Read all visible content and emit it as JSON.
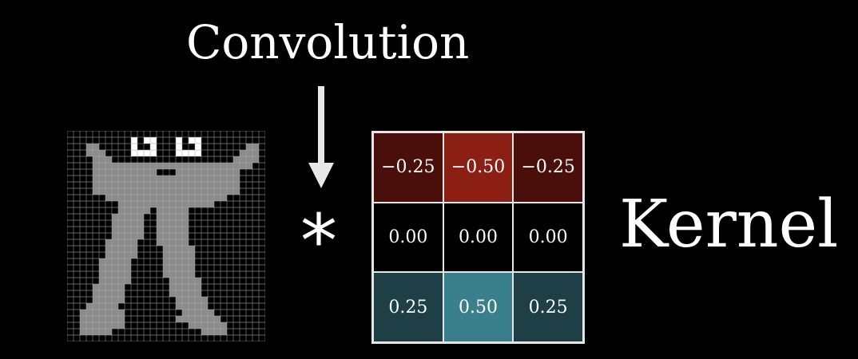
{
  "title": "Convolution",
  "operator": "*",
  "label": "Kernel",
  "kernel": {
    "values": [
      [
        -0.25,
        -0.5,
        -0.25
      ],
      [
        0.0,
        0.0,
        0.0
      ],
      [
        0.25,
        0.5,
        0.25
      ]
    ],
    "labels": [
      [
        "−0.25",
        "−0.50",
        "−0.25"
      ],
      [
        "0.00",
        "0.00",
        "0.00"
      ],
      [
        "0.25",
        "0.50",
        "0.25"
      ]
    ],
    "colors": {
      "negative_strong": "#8b1f14",
      "negative_weak": "#4a0f0a",
      "zero": "#000000",
      "positive_strong": "#3a7f8c",
      "positive_weak": "#1d3f45"
    }
  },
  "image": {
    "description_colors": {
      "grid_line": "#a9a9a9",
      "background_pixel": "#000000",
      "figure_pixel": "#8a8a8a",
      "eye_white": "#ffffff"
    }
  }
}
